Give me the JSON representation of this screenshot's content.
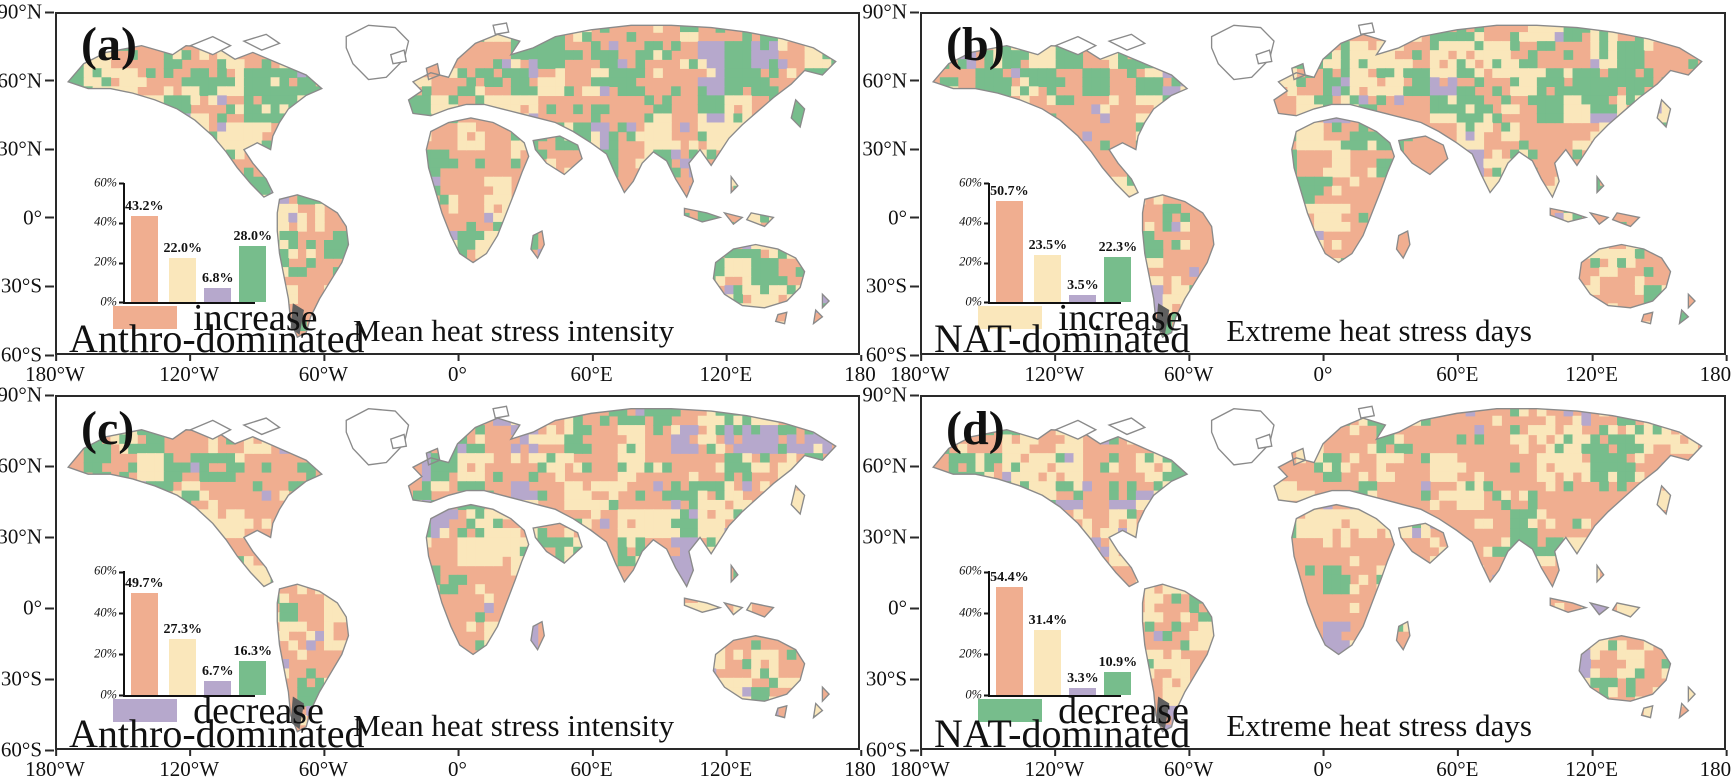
{
  "colors": {
    "coastline": "#8a8a8a",
    "axis": "#2a2a2a",
    "dark_terrain": "#5f5f5f",
    "anthro_increase": "#F0AE90",
    "nat_increase": "#FAE7BB",
    "anthro_decrease": "#B6A8CC",
    "nat_decrease": "#77BD8C"
  },
  "axis": {
    "lat_labels": [
      "90°N",
      "60°N",
      "30°N",
      "0°",
      "30°S",
      "60°S"
    ]
  },
  "panels": [
    {
      "id": "a",
      "label": "(a)",
      "map_title": "Mean heat stress intensity",
      "legend_label": "increase",
      "legend_color": "#F0AE90",
      "group_label": "Anthro-dominated",
      "lon_labels": [
        "180°W",
        "120°W",
        "60°W",
        "0°",
        "60°E",
        "120°E",
        "180"
      ],
      "inset": {
        "ytick_labels": [
          "0%",
          "20%",
          "40%",
          "60%"
        ],
        "bars": [
          {
            "name": "anthro-increase",
            "label": "43.2%",
            "value": 43.2,
            "color": "#F0AE90"
          },
          {
            "name": "nat-increase",
            "label": "22.0%",
            "value": 22.0,
            "color": "#FAE7BB"
          },
          {
            "name": "anthro-decrease",
            "label": "6.8%",
            "value": 6.8,
            "color": "#B6A8CC"
          },
          {
            "name": "nat-decrease",
            "label": "28.0%",
            "value": 28.0,
            "color": "#77BD8C"
          }
        ]
      }
    },
    {
      "id": "b",
      "label": "(b)",
      "map_title": "Extreme heat stress days",
      "legend_label": "increase",
      "legend_color": "#FAE7BB",
      "group_label": "NAT-dominated",
      "lon_labels": [
        "180°W",
        "120°W",
        "60°W",
        "0°",
        "60°E",
        "120°E",
        "180°E"
      ],
      "inset": {
        "ytick_labels": [
          "0%",
          "20%",
          "40%",
          "60%"
        ],
        "bars": [
          {
            "name": "anthro-increase",
            "label": "50.7%",
            "value": 50.7,
            "color": "#F0AE90"
          },
          {
            "name": "nat-increase",
            "label": "23.5%",
            "value": 23.5,
            "color": "#FAE7BB"
          },
          {
            "name": "anthro-decrease",
            "label": "3.5%",
            "value": 3.5,
            "color": "#B6A8CC"
          },
          {
            "name": "nat-decrease",
            "label": "22.3%",
            "value": 22.3,
            "color": "#77BD8C"
          }
        ]
      }
    },
    {
      "id": "c",
      "label": "(c)",
      "map_title": "Mean heat stress intensity",
      "legend_label": "decrease",
      "legend_color": "#B6A8CC",
      "group_label": "Anthro-dominated",
      "lon_labels": [
        "180°W",
        "120°W",
        "60°W",
        "0°",
        "60°E",
        "120°E",
        "180"
      ],
      "inset": {
        "ytick_labels": [
          "0%",
          "20%",
          "40%",
          "60%"
        ],
        "bars": [
          {
            "name": "anthro-increase",
            "label": "49.7%",
            "value": 49.7,
            "color": "#F0AE90"
          },
          {
            "name": "nat-increase",
            "label": "27.3%",
            "value": 27.3,
            "color": "#FAE7BB"
          },
          {
            "name": "anthro-decrease",
            "label": "6.7%",
            "value": 6.7,
            "color": "#B6A8CC"
          },
          {
            "name": "nat-decrease",
            "label": "16.3%",
            "value": 16.3,
            "color": "#77BD8C"
          }
        ]
      }
    },
    {
      "id": "d",
      "label": "(d)",
      "map_title": "Extreme heat stress days",
      "legend_label": "decrease",
      "legend_color": "#77BD8C",
      "group_label": "NAT-dominated",
      "lon_labels": [
        "180°W",
        "120°W",
        "60°W",
        "0°",
        "60°E",
        "120°E",
        "180°E"
      ],
      "inset": {
        "ytick_labels": [
          "0%",
          "20%",
          "40%",
          "60%"
        ],
        "bars": [
          {
            "name": "anthro-increase",
            "label": "54.4%",
            "value": 54.4,
            "color": "#F0AE90"
          },
          {
            "name": "nat-increase",
            "label": "31.4%",
            "value": 31.4,
            "color": "#FAE7BB"
          },
          {
            "name": "anthro-decrease",
            "label": "3.3%",
            "value": 3.3,
            "color": "#B6A8CC"
          },
          {
            "name": "nat-decrease",
            "label": "10.9%",
            "value": 10.9,
            "color": "#77BD8C"
          }
        ]
      }
    }
  ],
  "chart_data": [
    {
      "type": "bar",
      "panel": "(a)",
      "map_title": "Mean heat stress intensity",
      "categories": [
        "anthro-dominated increase",
        "nat-dominated increase",
        "anthro-dominated decrease",
        "nat-dominated decrease"
      ],
      "values": [
        43.2,
        22.0,
        6.8,
        28.0
      ],
      "unit": "%",
      "ylim": [
        0,
        60
      ],
      "ytick_labels": [
        "0%",
        "20%",
        "40%",
        "60%"
      ],
      "bar_colors": [
        "#F0AE90",
        "#FAE7BB",
        "#B6A8CC",
        "#77BD8C"
      ]
    },
    {
      "type": "bar",
      "panel": "(b)",
      "map_title": "Extreme heat stress days",
      "categories": [
        "anthro-dominated increase",
        "nat-dominated increase",
        "anthro-dominated decrease",
        "nat-dominated decrease"
      ],
      "values": [
        50.7,
        23.5,
        3.5,
        22.3
      ],
      "unit": "%",
      "ylim": [
        0,
        60
      ],
      "ytick_labels": [
        "0%",
        "20%",
        "40%",
        "60%"
      ],
      "bar_colors": [
        "#F0AE90",
        "#FAE7BB",
        "#B6A8CC",
        "#77BD8C"
      ]
    },
    {
      "type": "bar",
      "panel": "(c)",
      "map_title": "Mean heat stress intensity",
      "categories": [
        "anthro-dominated increase",
        "nat-dominated increase",
        "anthro-dominated decrease",
        "nat-dominated decrease"
      ],
      "values": [
        49.7,
        27.3,
        6.7,
        16.3
      ],
      "unit": "%",
      "ylim": [
        0,
        60
      ],
      "ytick_labels": [
        "0%",
        "20%",
        "40%",
        "60%"
      ],
      "bar_colors": [
        "#F0AE90",
        "#FAE7BB",
        "#B6A8CC",
        "#77BD8C"
      ]
    },
    {
      "type": "bar",
      "panel": "(d)",
      "map_title": "Extreme heat stress days",
      "categories": [
        "anthro-dominated increase",
        "nat-dominated increase",
        "anthro-dominated decrease",
        "nat-dominated decrease"
      ],
      "values": [
        54.4,
        31.4,
        3.3,
        10.9
      ],
      "unit": "%",
      "ylim": [
        0,
        60
      ],
      "ytick_labels": [
        "0%",
        "20%",
        "40%",
        "60%"
      ],
      "bar_colors": [
        "#F0AE90",
        "#FAE7BB",
        "#B6A8CC",
        "#77BD8C"
      ]
    }
  ]
}
